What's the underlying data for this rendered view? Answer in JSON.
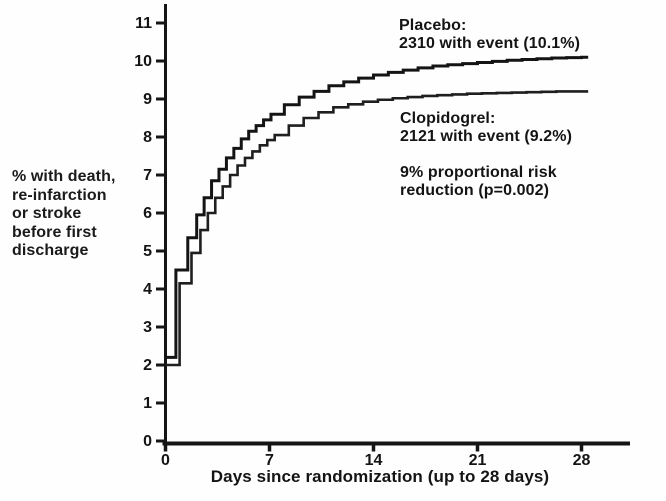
{
  "figure": {
    "y_axis_label_lines": [
      "% with death,",
      "re-infarction",
      "or stroke",
      "before first",
      "discharge"
    ],
    "x_axis_label": "Days since randomization (up to 28 days)",
    "annotations": {
      "placebo_line1": "Placebo:",
      "placebo_line2": "2310 with event (10.1%)",
      "clopidogrel_line1": "Clopidogrel:",
      "clopidogrel_line2": "2121 with event (9.2%)",
      "risk_line1": "9% proportional risk",
      "risk_line2": "reduction (p=0.002)"
    },
    "colors": {
      "axis": "#151515",
      "text": "#141414",
      "background": "#fefefe"
    }
  },
  "chart_data": {
    "type": "line",
    "subtype": "step",
    "title": "",
    "xlabel": "Days since randomization (up to 28 days)",
    "ylabel": "% with death, re-infarction or stroke before first discharge",
    "xlim": [
      0,
      31.3
    ],
    "ylim": [
      0,
      11.5
    ],
    "x_ticks": [
      0,
      7,
      14,
      21,
      28
    ],
    "y_ticks": [
      0,
      1,
      2,
      3,
      4,
      5,
      6,
      7,
      8,
      9,
      10,
      11
    ],
    "grid": false,
    "legend_position": "inline-annotations",
    "x_extend": 28.45,
    "series": [
      {
        "name": "Placebo",
        "events": "2310 with event (10.1%)",
        "final_pct": 10.1,
        "color": "#141414",
        "stroke_width": 3,
        "x": [
          0,
          0.7,
          1.5,
          2.1,
          2.6,
          3.1,
          3.6,
          4.1,
          4.6,
          5.1,
          5.6,
          6.1,
          6.6,
          7.1,
          8,
          9,
          10,
          11,
          12,
          13,
          14,
          15,
          16,
          17,
          18,
          19,
          20,
          21,
          22,
          23,
          24,
          25,
          26,
          27,
          28
        ],
        "y": [
          2.2,
          4.5,
          5.35,
          5.95,
          6.4,
          6.85,
          7.15,
          7.45,
          7.7,
          7.95,
          8.15,
          8.3,
          8.45,
          8.6,
          8.85,
          9.05,
          9.2,
          9.35,
          9.45,
          9.55,
          9.63,
          9.7,
          9.76,
          9.82,
          9.87,
          9.9,
          9.93,
          9.96,
          9.99,
          10.02,
          10.04,
          10.06,
          10.08,
          10.09,
          10.1
        ]
      },
      {
        "name": "Clopidogrel",
        "events": "2121 with event (9.2%)",
        "final_pct": 9.2,
        "color": "#1f1f1f",
        "stroke_width": 2.6,
        "x": [
          0,
          0.95,
          1.75,
          2.35,
          2.85,
          3.35,
          3.85,
          4.35,
          4.85,
          5.35,
          5.85,
          6.35,
          6.85,
          7.35,
          8.3,
          9.3,
          10.3,
          11.3,
          12.3,
          13.3,
          14.3,
          15.3,
          16.3,
          17.3,
          18.3,
          19.3,
          20.3,
          21.3,
          22.3,
          23.3,
          24.3,
          25.3,
          26.3,
          28.3
        ],
        "y": [
          2.0,
          4.15,
          4.95,
          5.55,
          6.0,
          6.4,
          6.7,
          7.0,
          7.25,
          7.45,
          7.62,
          7.78,
          7.92,
          8.05,
          8.3,
          8.5,
          8.65,
          8.78,
          8.86,
          8.93,
          8.98,
          9.02,
          9.05,
          9.08,
          9.1,
          9.12,
          9.14,
          9.15,
          9.16,
          9.17,
          9.18,
          9.19,
          9.2,
          9.2
        ]
      }
    ],
    "annotation": "9% proportional risk reduction (p=0.002)"
  }
}
